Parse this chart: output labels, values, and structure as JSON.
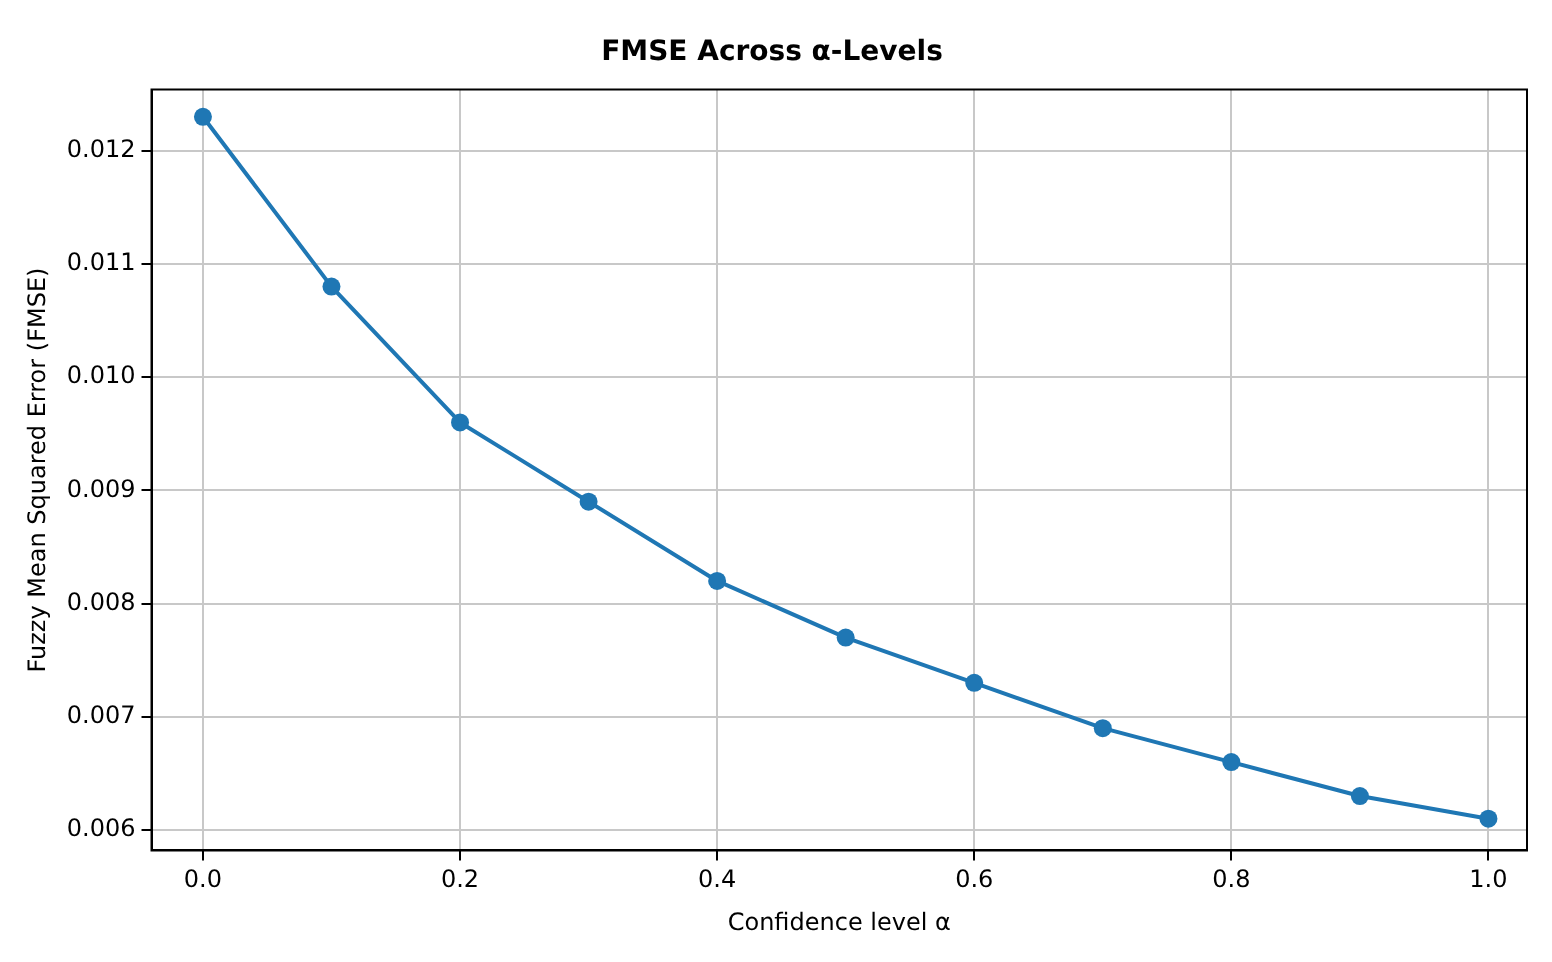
{
  "chart_data": {
    "type": "line",
    "title": "FMSE Across α-Levels",
    "xlabel": "Confidence level α",
    "ylabel": "Fuzzy Mean Squared Error (FMSE)",
    "x": [
      0.0,
      0.1,
      0.2,
      0.3,
      0.4,
      0.5,
      0.6,
      0.7,
      0.8,
      0.9,
      1.0
    ],
    "series": [
      {
        "color": "#1f77b4",
        "values": [
          0.0123,
          0.0108,
          0.0096,
          0.0089,
          0.0082,
          0.0077,
          0.0073,
          0.0069,
          0.0066,
          0.0063,
          0.0061
        ]
      }
    ],
    "xlim": [
      -0.04,
      1.03
    ],
    "xticks": [
      {
        "value": 0,
        "label": "0.0"
      },
      0.2,
      0.4,
      0.6,
      0.8,
      {
        "value": 1,
        "label": "1.0"
      }
    ],
    "ylim": [
      0.00582,
      0.01254
    ],
    "yticks": [
      {
        "value": 0.006,
        "label": "0.006"
      },
      0.007,
      0.008,
      0.009,
      {
        "value": 0.01,
        "label": "0.010"
      },
      0.011,
      0.012
    ],
    "grid": true,
    "marker": "circle",
    "line_style": "solid",
    "legend": false
  }
}
